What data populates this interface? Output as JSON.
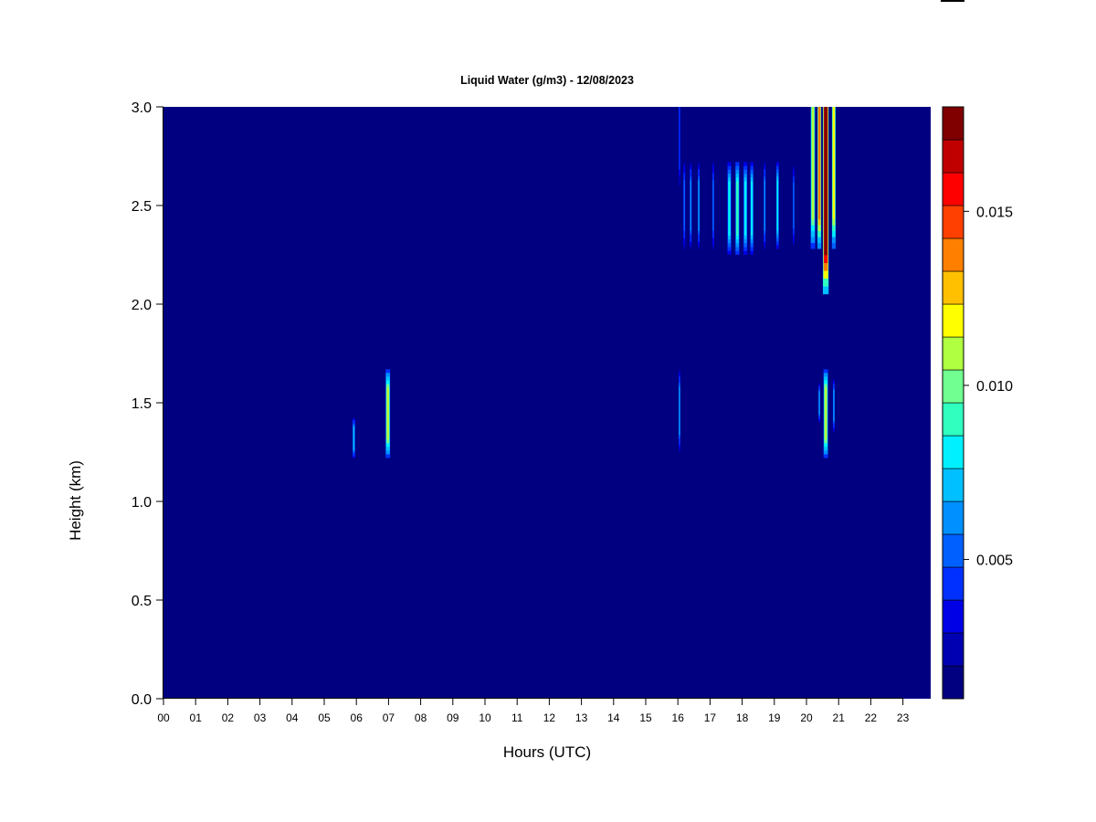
{
  "chart_data": {
    "type": "heatmap",
    "title": "Liquid Water (g/m3) - 12/08/2023",
    "xlabel": "Hours (UTC)",
    "ylabel": "Height (km)",
    "xlim": [
      0,
      24
    ],
    "ylim": [
      0,
      3.0
    ],
    "x_ticks": [
      0,
      1,
      2,
      3,
      4,
      5,
      6,
      7,
      8,
      9,
      10,
      11,
      12,
      13,
      14,
      15,
      16,
      17,
      18,
      19,
      20,
      21,
      22,
      23
    ],
    "x_tick_labels": [
      "00",
      "01",
      "02",
      "03",
      "04",
      "05",
      "06",
      "07",
      "08",
      "09",
      "10",
      "11",
      "12",
      "13",
      "14",
      "15",
      "16",
      "17",
      "18",
      "19",
      "20",
      "21",
      "22",
      "23"
    ],
    "y_ticks": [
      0.0,
      0.5,
      1.0,
      1.5,
      2.0,
      2.5,
      3.0
    ],
    "y_tick_labels": [
      "0.0",
      "0.5",
      "1.0",
      "1.5",
      "2.0",
      "2.5",
      "3.0"
    ],
    "background_value": 0.0,
    "colorbar": {
      "range": [
        0.001,
        0.018
      ],
      "levels": 17,
      "tick_values": [
        0.005,
        0.01,
        0.015
      ],
      "tick_labels": [
        "0.005",
        "0.010",
        "0.015"
      ],
      "colors": [
        "#000080",
        "#0000b3",
        "#0000e6",
        "#0030ff",
        "#0060ff",
        "#0090ff",
        "#00c0ff",
        "#00f0ff",
        "#30ffc0",
        "#70ff90",
        "#b0ff40",
        "#ffff00",
        "#ffc000",
        "#ff8000",
        "#ff4000",
        "#ff0000",
        "#c00000",
        "#800000"
      ]
    },
    "features": [
      {
        "x": 5.92,
        "width": 0.08,
        "y_bottom": 1.22,
        "y_top": 1.42,
        "peak": 0.007
      },
      {
        "x": 6.98,
        "width": 0.14,
        "y_bottom": 1.22,
        "y_top": 1.67,
        "peak": 0.011
      },
      {
        "x": 16.05,
        "width": 0.05,
        "y_bottom": 1.25,
        "y_top": 1.67,
        "peak": 0.006
      },
      {
        "x": 16.05,
        "width": 0.05,
        "y_bottom": 2.6,
        "y_top": 3.0,
        "peak": 0.004
      },
      {
        "x": 16.2,
        "width": 0.06,
        "y_bottom": 2.28,
        "y_top": 2.72,
        "peak": 0.005
      },
      {
        "x": 16.4,
        "width": 0.06,
        "y_bottom": 2.28,
        "y_top": 2.72,
        "peak": 0.006
      },
      {
        "x": 16.65,
        "width": 0.06,
        "y_bottom": 2.28,
        "y_top": 2.72,
        "peak": 0.006
      },
      {
        "x": 17.1,
        "width": 0.06,
        "y_bottom": 2.28,
        "y_top": 2.72,
        "peak": 0.005
      },
      {
        "x": 17.6,
        "width": 0.12,
        "y_bottom": 2.25,
        "y_top": 2.72,
        "peak": 0.008
      },
      {
        "x": 17.85,
        "width": 0.12,
        "y_bottom": 2.25,
        "y_top": 2.72,
        "peak": 0.009
      },
      {
        "x": 18.1,
        "width": 0.12,
        "y_bottom": 2.25,
        "y_top": 2.72,
        "peak": 0.008
      },
      {
        "x": 18.3,
        "width": 0.1,
        "y_bottom": 2.25,
        "y_top": 2.72,
        "peak": 0.008
      },
      {
        "x": 18.7,
        "width": 0.06,
        "y_bottom": 2.28,
        "y_top": 2.72,
        "peak": 0.006
      },
      {
        "x": 19.1,
        "width": 0.08,
        "y_bottom": 2.28,
        "y_top": 2.72,
        "peak": 0.008
      },
      {
        "x": 19.6,
        "width": 0.05,
        "y_bottom": 2.3,
        "y_top": 2.7,
        "peak": 0.005
      },
      {
        "x": 20.2,
        "width": 0.14,
        "y_bottom": 2.28,
        "y_top": 3.0,
        "peak": 0.011
      },
      {
        "x": 20.4,
        "width": 0.12,
        "y_bottom": 2.28,
        "y_top": 3.0,
        "peak": 0.014
      },
      {
        "x": 20.6,
        "width": 0.18,
        "y_bottom": 2.05,
        "y_top": 3.0,
        "peak": 0.018
      },
      {
        "x": 20.85,
        "width": 0.12,
        "y_bottom": 2.28,
        "y_top": 3.0,
        "peak": 0.012
      },
      {
        "x": 20.4,
        "width": 0.06,
        "y_bottom": 1.4,
        "y_top": 1.6,
        "peak": 0.006
      },
      {
        "x": 20.6,
        "width": 0.14,
        "y_bottom": 1.22,
        "y_top": 1.67,
        "peak": 0.011
      },
      {
        "x": 20.85,
        "width": 0.06,
        "y_bottom": 1.35,
        "y_top": 1.62,
        "peak": 0.006
      }
    ]
  }
}
